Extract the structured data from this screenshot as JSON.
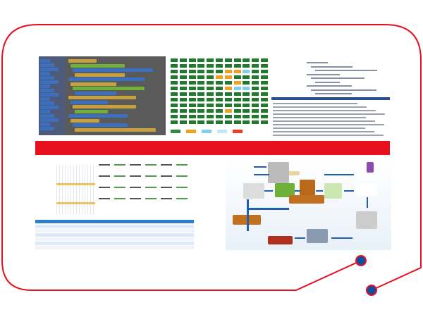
{
  "colors": {
    "frame": "#e8101e",
    "dot": "#0d4fa3",
    "banner": "#e8101e",
    "grid_ok": "#1f7a2e",
    "grid_warn": "#f0a020",
    "grid_info": "#7fd0e8",
    "flow_arrow": "#1f5fb0"
  },
  "panels": [
    {
      "name": "block-code-editor"
    },
    {
      "name": "status-grid"
    },
    {
      "name": "code-and-log"
    },
    {
      "name": "schedule-table"
    },
    {
      "name": "logistics-flow-diagram"
    }
  ]
}
